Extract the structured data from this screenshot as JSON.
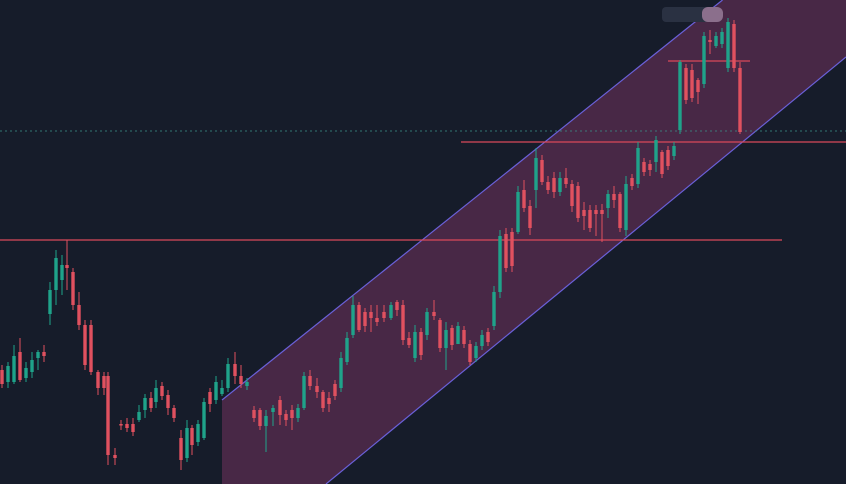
{
  "colors": {
    "background": "#161c2a",
    "bull": "#1fa38a",
    "bear": "#e0515f",
    "channel_line": "#6a60d8",
    "channel_fill": "#5a2c50",
    "level_line": "#d9485a",
    "price_line": "#3a8d84",
    "badge": "#8b6f8c",
    "badge_dark": "#2a3142"
  },
  "chart_data": {
    "type": "candlestick",
    "y_axis": {
      "inverted_pixel_units": true,
      "ylim": [
        484,
        0
      ]
    },
    "levels": [
      {
        "x_from": 0,
        "x_to": 782,
        "y": 240
      },
      {
        "x_from": 461,
        "x_to": 846,
        "y": 142
      },
      {
        "x_from": 668,
        "x_to": 750,
        "y": 61
      }
    ],
    "current_price": 131,
    "channel": {
      "upper": [
        [
          222,
          400
        ],
        [
          700,
          18
        ]
      ],
      "lower": [
        [
          326,
          484
        ],
        [
          846,
          57
        ]
      ]
    },
    "candles": [
      [
        2,
        365,
        388,
        370,
        384
      ],
      [
        8,
        362,
        388,
        382,
        366
      ],
      [
        14,
        345,
        384,
        382,
        356
      ],
      [
        20,
        338,
        382,
        352,
        380
      ],
      [
        26,
        362,
        382,
        378,
        368
      ],
      [
        32,
        352,
        378,
        372,
        360
      ],
      [
        38,
        350,
        370,
        358,
        352
      ],
      [
        44,
        345,
        362,
        352,
        356
      ],
      [
        50,
        282,
        325,
        314,
        290
      ],
      [
        56,
        250,
        305,
        290,
        258
      ],
      [
        62,
        255,
        295,
        280,
        265
      ],
      [
        67,
        240,
        290,
        265,
        268
      ],
      [
        73,
        268,
        310,
        272,
        305
      ],
      [
        79,
        292,
        330,
        305,
        325
      ],
      [
        85,
        320,
        370,
        325,
        365
      ],
      [
        91,
        320,
        375,
        325,
        372
      ],
      [
        98,
        370,
        395,
        372,
        388
      ],
      [
        104,
        372,
        395,
        376,
        388
      ],
      [
        108,
        372,
        465,
        376,
        455
      ],
      [
        115,
        448,
        465,
        455,
        458
      ],
      [
        121,
        420,
        430,
        424,
        424
      ],
      [
        127,
        418,
        432,
        424,
        428
      ],
      [
        133,
        418,
        436,
        424,
        432
      ],
      [
        139,
        405,
        422,
        420,
        412
      ],
      [
        145,
        394,
        418,
        410,
        398
      ],
      [
        151,
        392,
        412,
        398,
        408
      ],
      [
        156,
        380,
        408,
        402,
        388
      ],
      [
        162,
        382,
        400,
        386,
        396
      ],
      [
        168,
        390,
        415,
        395,
        408
      ],
      [
        174,
        405,
        422,
        408,
        418
      ],
      [
        181,
        430,
        470,
        438,
        460
      ],
      [
        187,
        420,
        462,
        458,
        428
      ],
      [
        192,
        425,
        455,
        428,
        445
      ],
      [
        198,
        420,
        446,
        442,
        424
      ],
      [
        204,
        398,
        440,
        438,
        402
      ],
      [
        210,
        388,
        412,
        392,
        404
      ],
      [
        216,
        376,
        404,
        400,
        382
      ],
      [
        222,
        380,
        396,
        394,
        388
      ],
      [
        228,
        358,
        392,
        388,
        364
      ],
      [
        235,
        352,
        384,
        364,
        376
      ],
      [
        241,
        365,
        388,
        376,
        384
      ],
      [
        247,
        378,
        390,
        386,
        382
      ],
      [
        254,
        406,
        422,
        410,
        418
      ],
      [
        260,
        408,
        430,
        410,
        426
      ],
      [
        266,
        410,
        452,
        426,
        416
      ],
      [
        273,
        405,
        426,
        412,
        408
      ],
      [
        280,
        396,
        425,
        400,
        415
      ],
      [
        286,
        410,
        426,
        414,
        420
      ],
      [
        292,
        405,
        430,
        410,
        418
      ],
      [
        298,
        404,
        422,
        418,
        408
      ],
      [
        304,
        372,
        410,
        408,
        376
      ],
      [
        310,
        370,
        390,
        376,
        386
      ],
      [
        317,
        378,
        398,
        386,
        392
      ],
      [
        323,
        390,
        412,
        392,
        408
      ],
      [
        329,
        392,
        412,
        398,
        404
      ],
      [
        335,
        380,
        400,
        384,
        396
      ],
      [
        341,
        352,
        392,
        388,
        358
      ],
      [
        347,
        332,
        365,
        362,
        338
      ],
      [
        353,
        296,
        338,
        335,
        305
      ],
      [
        359,
        302,
        332,
        305,
        330
      ],
      [
        365,
        308,
        332,
        312,
        326
      ],
      [
        371,
        305,
        332,
        312,
        318
      ],
      [
        377,
        305,
        326,
        318,
        322
      ],
      [
        384,
        305,
        322,
        312,
        318
      ],
      [
        391,
        302,
        320,
        318,
        305
      ],
      [
        397,
        300,
        316,
        302,
        310
      ],
      [
        403,
        300,
        345,
        305,
        340
      ],
      [
        409,
        332,
        348,
        338,
        345
      ],
      [
        415,
        325,
        362,
        358,
        332
      ],
      [
        421,
        328,
        360,
        332,
        355
      ],
      [
        427,
        308,
        340,
        335,
        312
      ],
      [
        434,
        300,
        320,
        312,
        316
      ],
      [
        440,
        318,
        352,
        320,
        348
      ],
      [
        446,
        322,
        370,
        348,
        330
      ],
      [
        452,
        325,
        350,
        328,
        345
      ],
      [
        458,
        322,
        340,
        344,
        326
      ],
      [
        464,
        326,
        348,
        330,
        344
      ],
      [
        470,
        340,
        365,
        344,
        362
      ],
      [
        476,
        342,
        362,
        358,
        346
      ],
      [
        482,
        330,
        350,
        346,
        335
      ],
      [
        488,
        328,
        346,
        332,
        342
      ],
      [
        494,
        286,
        330,
        326,
        292
      ],
      [
        500,
        230,
        298,
        292,
        236
      ],
      [
        506,
        228,
        272,
        234,
        268
      ],
      [
        512,
        228,
        272,
        232,
        266
      ],
      [
        518,
        186,
        234,
        232,
        192
      ],
      [
        524,
        180,
        212,
        190,
        208
      ],
      [
        530,
        200,
        235,
        206,
        228
      ],
      [
        536,
        148,
        208,
        190,
        158
      ],
      [
        542,
        155,
        185,
        160,
        182
      ],
      [
        548,
        176,
        194,
        182,
        190
      ],
      [
        554,
        172,
        198,
        178,
        192
      ],
      [
        560,
        172,
        196,
        192,
        178
      ],
      [
        566,
        168,
        188,
        178,
        184
      ],
      [
        572,
        180,
        212,
        184,
        206
      ],
      [
        578,
        182,
        222,
        186,
        218
      ],
      [
        584,
        202,
        230,
        210,
        216
      ],
      [
        590,
        205,
        232,
        210,
        228
      ],
      [
        596,
        205,
        236,
        210,
        214
      ],
      [
        602,
        204,
        242,
        210,
        214
      ],
      [
        608,
        190,
        218,
        208,
        194
      ],
      [
        614,
        186,
        208,
        194,
        200
      ],
      [
        620,
        192,
        232,
        194,
        228
      ],
      [
        626,
        176,
        236,
        230,
        184
      ],
      [
        632,
        174,
        190,
        178,
        186
      ],
      [
        638,
        142,
        188,
        184,
        148
      ],
      [
        644,
        158,
        176,
        162,
        172
      ],
      [
        650,
        160,
        176,
        164,
        170
      ],
      [
        656,
        136,
        172,
        162,
        140
      ],
      [
        662,
        150,
        178,
        152,
        174
      ],
      [
        668,
        146,
        170,
        150,
        166
      ],
      [
        674,
        142,
        160,
        156,
        146
      ],
      [
        680,
        60,
        134,
        130,
        62
      ],
      [
        686,
        64,
        104,
        68,
        100
      ],
      [
        692,
        64,
        102,
        70,
        98
      ],
      [
        698,
        78,
        104,
        80,
        92
      ],
      [
        704,
        32,
        88,
        84,
        36
      ],
      [
        710,
        30,
        54,
        40,
        42
      ],
      [
        716,
        32,
        48,
        46,
        36
      ],
      [
        722,
        28,
        48,
        44,
        32
      ],
      [
        728,
        18,
        72,
        68,
        22
      ],
      [
        734,
        20,
        72,
        24,
        68
      ],
      [
        740,
        62,
        134,
        68,
        132
      ]
    ]
  }
}
